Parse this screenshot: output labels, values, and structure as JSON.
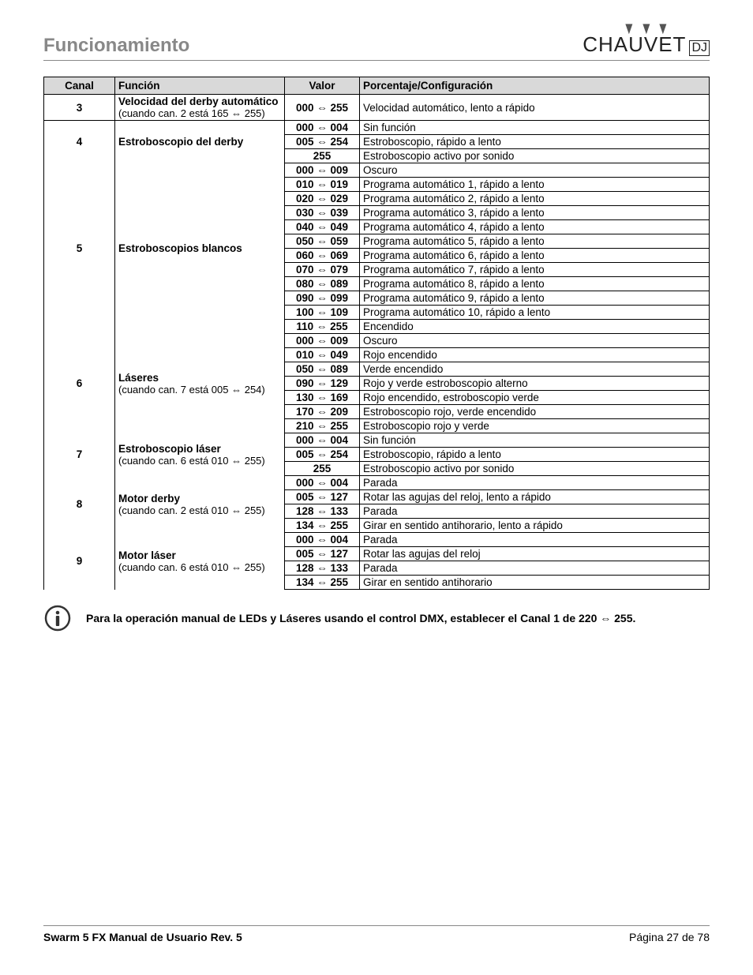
{
  "section_title": "Funcionamiento",
  "logo_text": "CHAUVET",
  "logo_dj": "DJ",
  "table": {
    "headers": {
      "canal": "Canal",
      "funcion": "Función",
      "valor": "Valor",
      "config": "Porcentaje/Configuración"
    },
    "channels": [
      {
        "num": "3",
        "fn_main": "Velocidad del derby automático",
        "fn_sub": "(cuando can. 2 está 165 ⇔ 255)",
        "rows": [
          {
            "valor": "000 ⇔ 255",
            "cfg": "Velocidad automático, lento a rápido"
          }
        ]
      },
      {
        "num": "4",
        "fn_main": "Estroboscopio del derby",
        "fn_sub": "",
        "rows": [
          {
            "valor": "000 ⇔ 004",
            "cfg": "Sin función"
          },
          {
            "valor": "005 ⇔ 254",
            "cfg": "Estroboscopio, rápido a lento"
          },
          {
            "valor": "255",
            "cfg": "Estroboscopio activo por sonido"
          }
        ]
      },
      {
        "num": "5",
        "fn_main": "Estroboscopios blancos",
        "fn_sub": "",
        "rows": [
          {
            "valor": "000 ⇔ 009",
            "cfg": "Oscuro"
          },
          {
            "valor": "010 ⇔ 019",
            "cfg": "Programa automático 1, rápido a lento"
          },
          {
            "valor": "020 ⇔ 029",
            "cfg": "Programa automático 2, rápido a lento"
          },
          {
            "valor": "030 ⇔ 039",
            "cfg": "Programa automático 3, rápido a lento"
          },
          {
            "valor": "040 ⇔ 049",
            "cfg": "Programa automático 4, rápido a lento"
          },
          {
            "valor": "050 ⇔ 059",
            "cfg": "Programa automático 5, rápido a lento"
          },
          {
            "valor": "060 ⇔ 069",
            "cfg": "Programa automático 6, rápido a lento"
          },
          {
            "valor": "070 ⇔ 079",
            "cfg": "Programa automático 7, rápido a lento"
          },
          {
            "valor": "080 ⇔ 089",
            "cfg": "Programa automático 8, rápido a lento"
          },
          {
            "valor": "090 ⇔ 099",
            "cfg": "Programa automático 9, rápido a lento"
          },
          {
            "valor": "100 ⇔ 109",
            "cfg": "Programa automático 10, rápido a lento"
          },
          {
            "valor": "110 ⇔ 255",
            "cfg": "Encendido"
          }
        ]
      },
      {
        "num": "6",
        "fn_main": "Láseres",
        "fn_sub": "(cuando can. 7 está 005 ⇔ 254)",
        "rows": [
          {
            "valor": "000 ⇔ 009",
            "cfg": "Oscuro"
          },
          {
            "valor": "010 ⇔ 049",
            "cfg": "Rojo encendido"
          },
          {
            "valor": "050 ⇔ 089",
            "cfg": "Verde encendido"
          },
          {
            "valor": "090 ⇔ 129",
            "cfg": "Rojo y verde estroboscopio alterno"
          },
          {
            "valor": "130 ⇔ 169",
            "cfg": "Rojo encendido, estroboscopio verde"
          },
          {
            "valor": "170 ⇔ 209",
            "cfg": "Estroboscopio rojo, verde encendido"
          },
          {
            "valor": "210 ⇔ 255",
            "cfg": "Estroboscopio rojo y verde"
          }
        ]
      },
      {
        "num": "7",
        "fn_main": "Estroboscopio láser",
        "fn_sub": "(cuando can. 6 está 010 ⇔ 255)",
        "rows": [
          {
            "valor": "000 ⇔ 004",
            "cfg": "Sin función"
          },
          {
            "valor": "005 ⇔ 254",
            "cfg": "Estroboscopio, rápido a lento"
          },
          {
            "valor": "255",
            "cfg": "Estroboscopio activo por sonido"
          }
        ]
      },
      {
        "num": "8",
        "fn_main": "Motor derby",
        "fn_sub": "(cuando can. 2 está 010 ⇔ 255)",
        "rows": [
          {
            "valor": "000 ⇔ 004",
            "cfg": "Parada"
          },
          {
            "valor": "005 ⇔ 127",
            "cfg": "Rotar las agujas del reloj, lento a rápido"
          },
          {
            "valor": "128 ⇔ 133",
            "cfg": "Parada"
          },
          {
            "valor": "134 ⇔ 255",
            "cfg": "Girar en sentido antihorario, lento a rápido"
          }
        ]
      },
      {
        "num": "9",
        "fn_main": "Motor láser",
        "fn_sub": "(cuando can. 6 está 010 ⇔ 255)",
        "rows": [
          {
            "valor": "000 ⇔ 004",
            "cfg": "Parada"
          },
          {
            "valor": "005 ⇔ 127",
            "cfg": "Rotar las agujas del reloj"
          },
          {
            "valor": "128 ⇔ 133",
            "cfg": "Parada"
          },
          {
            "valor": "134 ⇔ 255",
            "cfg": "Girar en sentido antihorario"
          }
        ]
      }
    ]
  },
  "note": "Para la operación manual de LEDs y Láseres usando el control DMX, establecer el Canal 1 de 220 ⇔ 255.",
  "footer_left": "Swarm 5 FX Manual de Usuario Rev. 5",
  "footer_right": "Página 27 de 78",
  "colors": {
    "section_title": "#888888",
    "header_bg": "#d9d9d9",
    "border": "#000000",
    "page_bg": "#ffffff"
  }
}
